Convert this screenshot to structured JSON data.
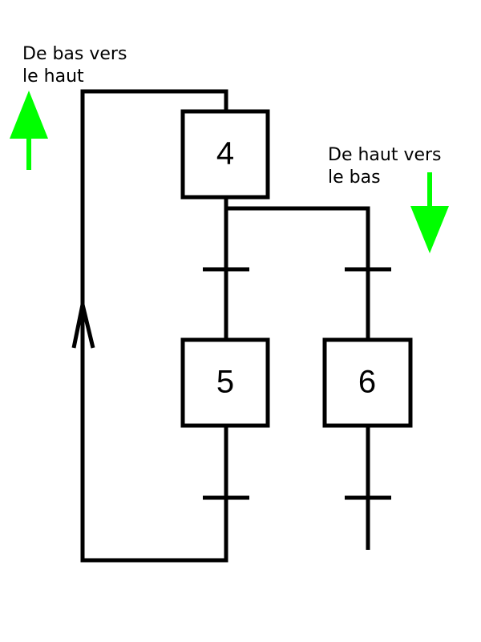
{
  "annotations": {
    "up": {
      "line1": "De bas vers",
      "line2": "le haut"
    },
    "down": {
      "line1": "De haut vers",
      "line2": "le bas"
    }
  },
  "steps": [
    {
      "id": "4",
      "label": "4"
    },
    {
      "id": "5",
      "label": "5"
    },
    {
      "id": "6",
      "label": "6"
    }
  ],
  "colors": {
    "line": "#000000",
    "arrow": "#00ff00",
    "background": "#ffffff"
  }
}
